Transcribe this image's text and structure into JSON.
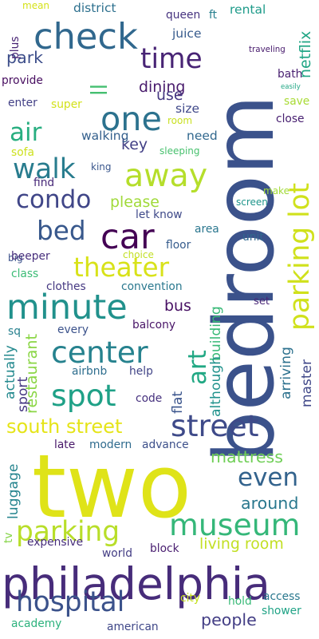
{
  "words": [
    {
      "text": "two",
      "color": "#dfe318"
    },
    {
      "text": "bedroom",
      "color": "#3b528b"
    },
    {
      "text": "philadelphia",
      "color": "#472c7a"
    },
    {
      "text": "check",
      "color": "#31688e"
    },
    {
      "text": "car",
      "color": "#440154"
    },
    {
      "text": "away",
      "color": "#b5de2b"
    },
    {
      "text": "minute",
      "color": "#21918c"
    },
    {
      "text": "street",
      "color": "#3e4a89"
    },
    {
      "text": "one",
      "color": "#2c728e"
    },
    {
      "text": "parking",
      "color": "#b8de29"
    },
    {
      "text": "museum",
      "color": "#35b779"
    },
    {
      "text": "spot",
      "color": "#1fa187"
    },
    {
      "text": "center",
      "color": "#26828e"
    },
    {
      "text": "condo",
      "color": "#404688"
    },
    {
      "text": "parking lot",
      "color": "#d0e11c"
    },
    {
      "text": "time",
      "color": "#482475"
    },
    {
      "text": "walk",
      "color": "#287c8e"
    },
    {
      "text": "bed",
      "color": "#38588c"
    },
    {
      "text": "hospital",
      "color": "#3b528b"
    },
    {
      "text": "theater",
      "color": "#d8e219"
    },
    {
      "text": "ll",
      "color": "#44bf70"
    },
    {
      "text": "art",
      "color": "#22a884"
    },
    {
      "text": "air",
      "color": "#28ae80"
    },
    {
      "text": "even",
      "color": "#33638d"
    },
    {
      "text": "south street",
      "color": "#e5e419"
    },
    {
      "text": "around",
      "color": "#2a788e"
    },
    {
      "text": "people",
      "color": "#433e85"
    },
    {
      "text": "please",
      "color": "#a0da39"
    },
    {
      "text": "mattress",
      "color": "#70cf57"
    },
    {
      "text": "living room",
      "color": "#c2df23"
    },
    {
      "text": "dining",
      "color": "#481a6c"
    },
    {
      "text": "park",
      "color": "#3d4e8a"
    },
    {
      "text": "use",
      "color": "#453781"
    },
    {
      "text": "key",
      "color": "#423f85"
    },
    {
      "text": "bus",
      "color": "#471063"
    },
    {
      "text": "tv",
      "color": "#86d549"
    },
    {
      "text": "walking",
      "color": "#34608d"
    },
    {
      "text": "rental",
      "color": "#1e9b8a"
    },
    {
      "text": "juice",
      "color": "#375b8d"
    },
    {
      "text": "size",
      "color": "#3f4889"
    },
    {
      "text": "need",
      "color": "#31688e"
    },
    {
      "text": "netflix",
      "color": "#21a685"
    },
    {
      "text": "queen",
      "color": "#46337f"
    },
    {
      "text": "ft",
      "color": "#277f8e"
    },
    {
      "text": "district",
      "color": "#2d708e"
    },
    {
      "text": "provide",
      "color": "#470d60"
    },
    {
      "text": "bath",
      "color": "#481f70"
    },
    {
      "text": "enter",
      "color": "#424086"
    },
    {
      "text": "super",
      "color": "#d2e21b"
    },
    {
      "text": "room",
      "color": "#c8e020"
    },
    {
      "text": "save",
      "color": "#a8db34"
    },
    {
      "text": "sofa",
      "color": "#cde11d"
    },
    {
      "text": "sleeping",
      "color": "#48c16e"
    },
    {
      "text": "close",
      "color": "#482071"
    },
    {
      "text": "find",
      "color": "#482979"
    },
    {
      "text": "king",
      "color": "#39568c"
    },
    {
      "text": "make",
      "color": "#a2da37"
    },
    {
      "text": "screen",
      "color": "#1f958b"
    },
    {
      "text": "let know",
      "color": "#3e4989"
    },
    {
      "text": "area",
      "color": "#2a768e"
    },
    {
      "text": "big",
      "color": "#3b518b"
    },
    {
      "text": "beeper",
      "color": "#472e7c"
    },
    {
      "text": "floor",
      "color": "#365c8d"
    },
    {
      "text": "unit",
      "color": "#31678e"
    },
    {
      "text": "choice",
      "color": "#c2df23"
    },
    {
      "text": "class",
      "color": "#3bbb75"
    },
    {
      "text": "clothes",
      "color": "#453882"
    },
    {
      "text": "convention",
      "color": "#2a788e"
    },
    {
      "text": "set",
      "color": "#482576"
    },
    {
      "text": "building",
      "color": "#38b977"
    },
    {
      "text": "balcony",
      "color": "#481467"
    },
    {
      "text": "every",
      "color": "#3b528b"
    },
    {
      "text": "sq",
      "color": "#27808e"
    },
    {
      "text": "actually",
      "color": "#23898e"
    },
    {
      "text": "restaurant",
      "color": "#8bd646"
    },
    {
      "text": "although",
      "color": "#20928c"
    },
    {
      "text": "arriving",
      "color": "#2c718e"
    },
    {
      "text": "master",
      "color": "#3f4788"
    },
    {
      "text": "airbnb",
      "color": "#2e6e8e"
    },
    {
      "text": "help",
      "color": "#414487"
    },
    {
      "text": "code",
      "color": "#46317e"
    },
    {
      "text": "flat",
      "color": "#3a548c"
    },
    {
      "text": "sport",
      "color": "#453781"
    },
    {
      "text": "late",
      "color": "#481769"
    },
    {
      "text": "modern",
      "color": "#2f6b8e"
    },
    {
      "text": "advance",
      "color": "#3c4f8a"
    },
    {
      "text": "luggage",
      "color": "#25848e"
    },
    {
      "text": "expensive",
      "color": "#472d7b"
    },
    {
      "text": "world",
      "color": "#433d84"
    },
    {
      "text": "block",
      "color": "#481d6f"
    },
    {
      "text": "academy",
      "color": "#2db27d"
    },
    {
      "text": "american",
      "color": "#3f4788"
    },
    {
      "text": "city",
      "color": "#c5e021"
    },
    {
      "text": "hold",
      "color": "#38b977"
    },
    {
      "text": "access",
      "color": "#2a788e"
    },
    {
      "text": "shower",
      "color": "#20a386"
    },
    {
      "text": "mean",
      "color": "#d5e21a"
    },
    {
      "text": "plus",
      "color": "#482475"
    },
    {
      "text": "traveling",
      "color": "#481b6d"
    },
    {
      "text": "easily",
      "color": "#22a785"
    }
  ]
}
